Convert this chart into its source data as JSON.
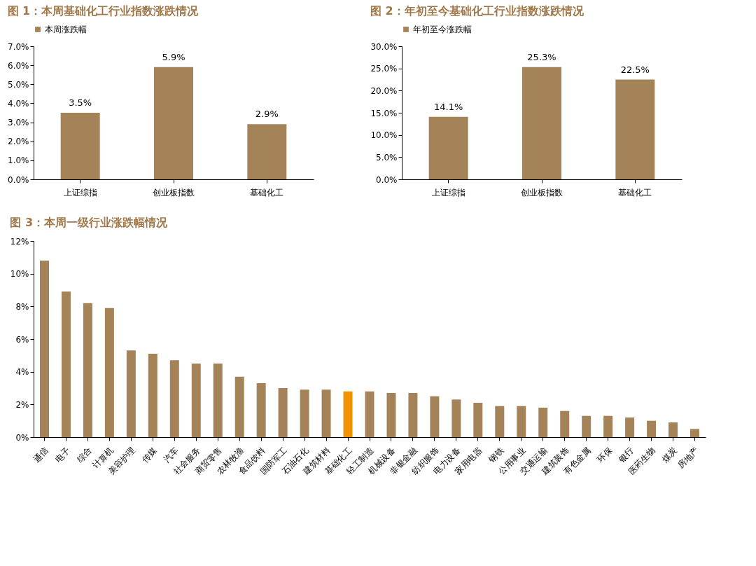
{
  "chart_data": [
    {
      "type": "bar",
      "title": "图 1：本周基础化工行业指数涨跌情况",
      "categories": [
        "上证综指",
        "创业板指数",
        "基础化工"
      ],
      "series": [
        {
          "name": "本周涨跌幅",
          "color": "#a58359",
          "values": [
            3.5,
            5.9,
            2.9
          ]
        }
      ],
      "value_labels": [
        "3.5%",
        "5.9%",
        "2.9%"
      ],
      "ylim": [
        0,
        7
      ],
      "yticks": [
        {
          "value": 0,
          "label": "0.0%"
        },
        {
          "value": 1,
          "label": "1.0%"
        },
        {
          "value": 2,
          "label": "2.0%"
        },
        {
          "value": 3,
          "label": "3.0%"
        },
        {
          "value": 4,
          "label": "4.0%"
        },
        {
          "value": 5,
          "label": "5.0%"
        },
        {
          "value": 6,
          "label": "6.0%"
        },
        {
          "value": 7,
          "label": "7.0%"
        }
      ],
      "grid": false,
      "legend": "top"
    },
    {
      "type": "bar",
      "title": "图 2：年初至今基础化工行业指数涨跌情况",
      "categories": [
        "上证综指",
        "创业板指数",
        "基础化工"
      ],
      "series": [
        {
          "name": "年初至今涨跌幅",
          "color": "#a58359",
          "values": [
            14.1,
            25.3,
            22.5
          ]
        }
      ],
      "value_labels": [
        "14.1%",
        "25.3%",
        "22.5%"
      ],
      "ylim": [
        0,
        30
      ],
      "yticks": [
        {
          "value": 0,
          "label": "0.0%"
        },
        {
          "value": 5,
          "label": "5.0%"
        },
        {
          "value": 10,
          "label": "10.0%"
        },
        {
          "value": 15,
          "label": "15.0%"
        },
        {
          "value": 20,
          "label": "20.0%"
        },
        {
          "value": 25,
          "label": "25.0%"
        },
        {
          "value": 30,
          "label": "30.0%"
        }
      ],
      "grid": false,
      "legend": "top"
    },
    {
      "type": "bar",
      "title": "图 3：本周一级行业涨跌幅情况",
      "categories": [
        "通信",
        "电子",
        "综合",
        "计算机",
        "美容护理",
        "传媒",
        "汽车",
        "社会服务",
        "商贸零售",
        "农林牧渔",
        "食品饮料",
        "国防军工",
        "石油石化",
        "建筑材料",
        "基础化工",
        "轻工制造",
        "机械设备",
        "非银金融",
        "纺织服饰",
        "电力设备",
        "家用电器",
        "钢铁",
        "公用事业",
        "交通运输",
        "建筑装饰",
        "有色金属",
        "环保",
        "银行",
        "医药生物",
        "煤炭",
        "房地产"
      ],
      "values": [
        10.8,
        8.9,
        8.2,
        7.9,
        5.3,
        5.1,
        4.7,
        4.5,
        4.5,
        3.7,
        3.3,
        3.0,
        2.9,
        2.9,
        2.8,
        2.8,
        2.7,
        2.7,
        2.5,
        2.3,
        2.1,
        1.9,
        1.9,
        1.8,
        1.6,
        1.3,
        1.3,
        1.2,
        1.0,
        0.9,
        0.5
      ],
      "colors": [
        "#a58359",
        "#a58359",
        "#a58359",
        "#a58359",
        "#a58359",
        "#a58359",
        "#a58359",
        "#a58359",
        "#a58359",
        "#a58359",
        "#a58359",
        "#a58359",
        "#a58359",
        "#a58359",
        "#f39200",
        "#a58359",
        "#a58359",
        "#a58359",
        "#a58359",
        "#a58359",
        "#a58359",
        "#a58359",
        "#a58359",
        "#a58359",
        "#a58359",
        "#a58359",
        "#a58359",
        "#a58359",
        "#a58359",
        "#a58359",
        "#a58359"
      ],
      "ylim": [
        0,
        12
      ],
      "yticks": [
        {
          "value": 0,
          "label": "0%"
        },
        {
          "value": 2,
          "label": "2%"
        },
        {
          "value": 4,
          "label": "4%"
        },
        {
          "value": 6,
          "label": "6%"
        },
        {
          "value": 8,
          "label": "8%"
        },
        {
          "value": 10,
          "label": "10%"
        },
        {
          "value": 12,
          "label": "12%"
        }
      ],
      "grid": false
    }
  ]
}
